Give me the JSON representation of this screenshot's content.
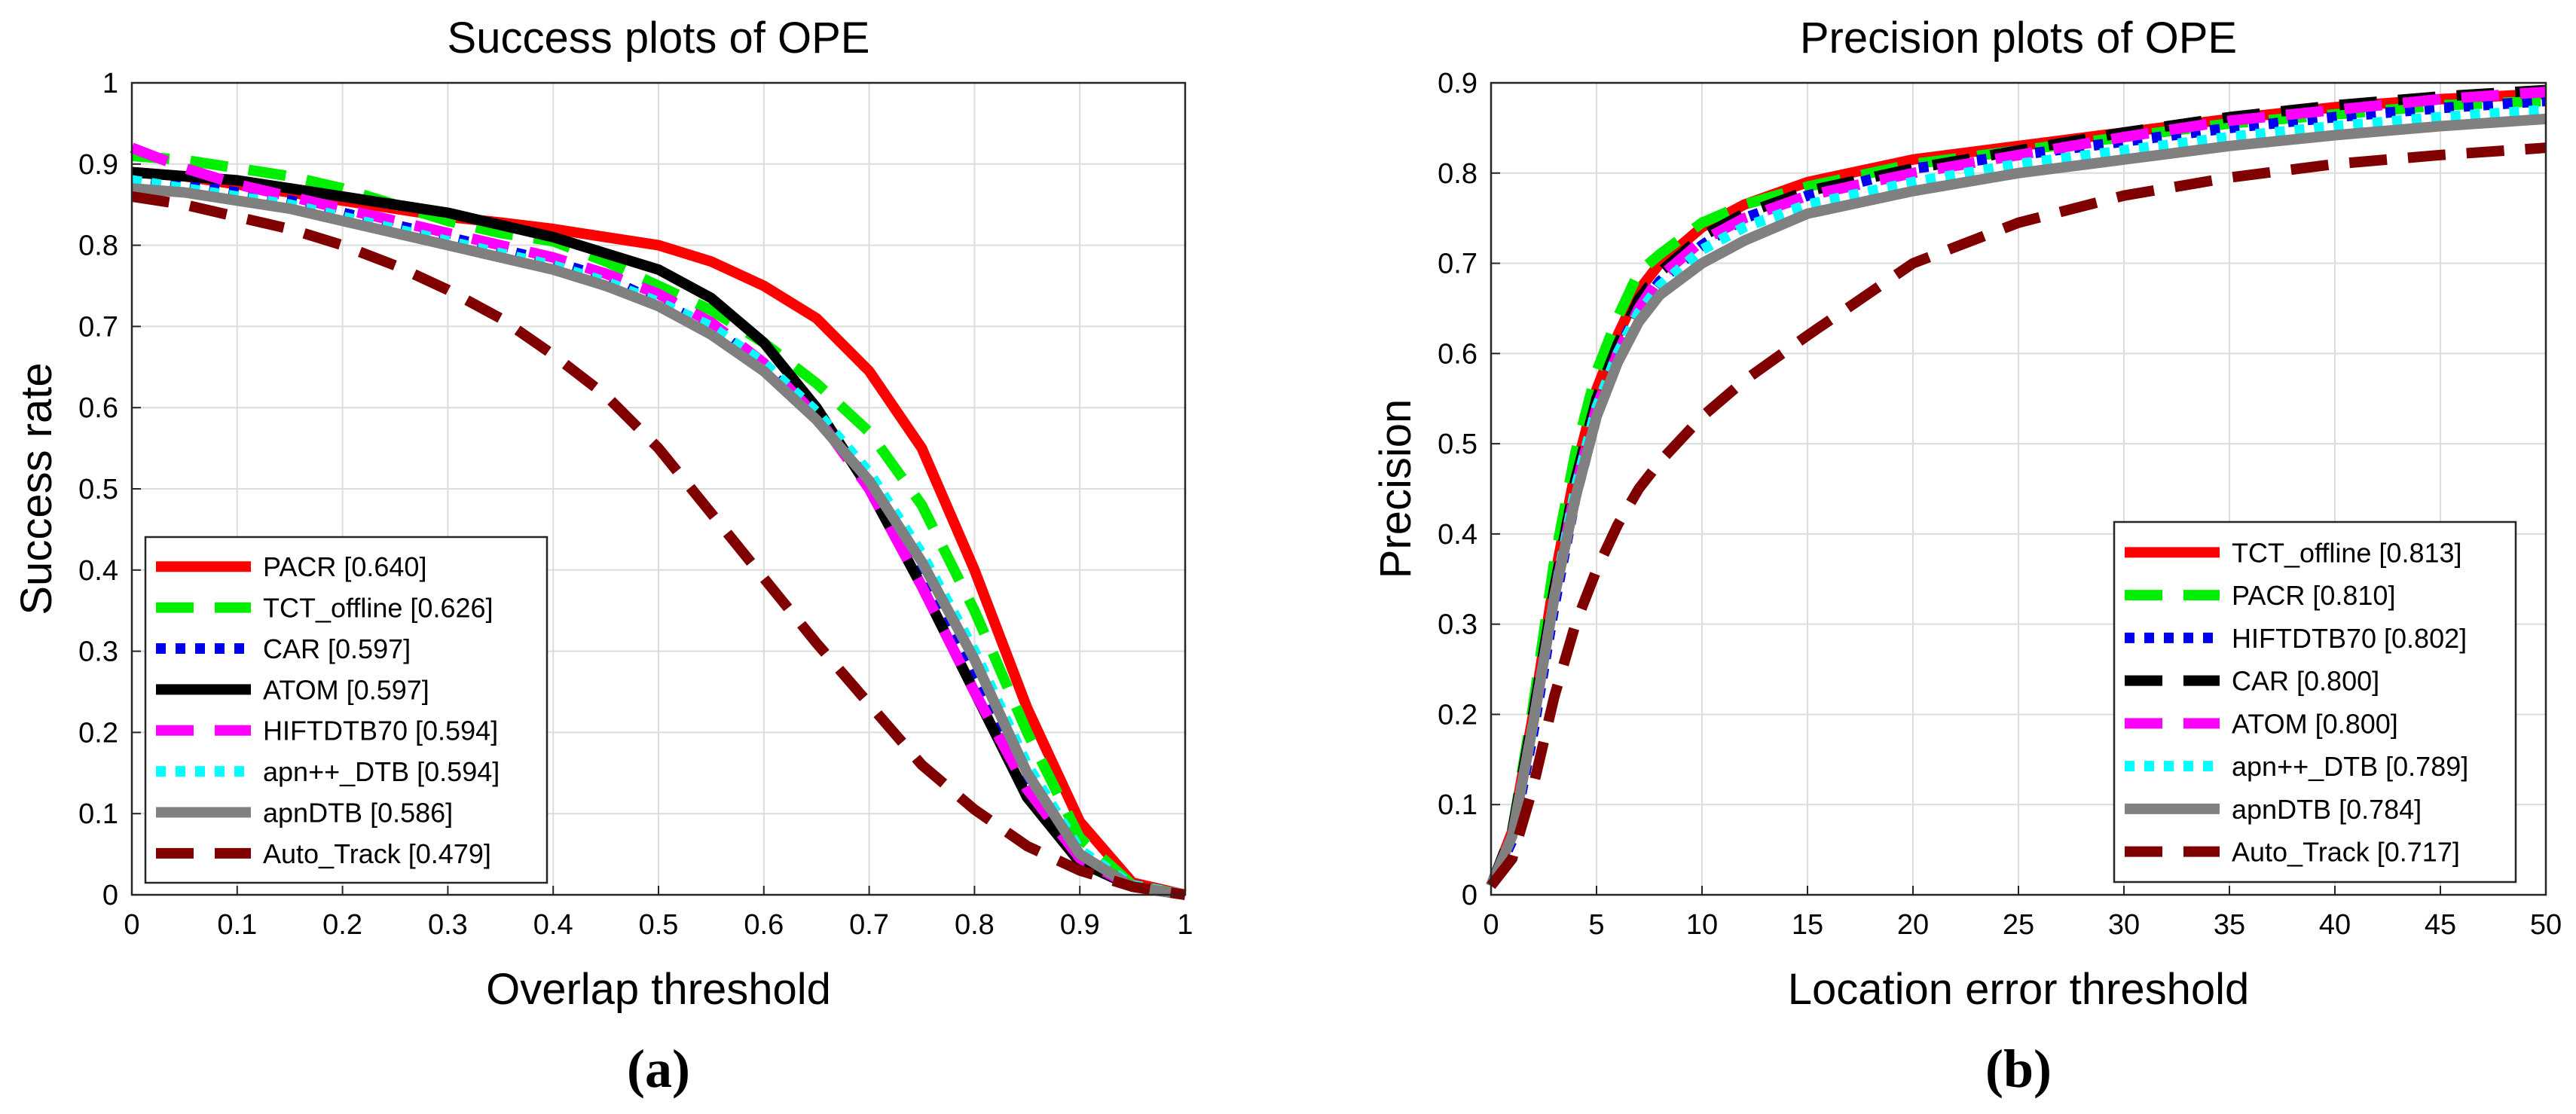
{
  "chart_data": [
    {
      "type": "line",
      "panel_label": "(a)",
      "title": "Success plots of OPE",
      "xlabel": "Overlap threshold",
      "ylabel": "Success rate",
      "xlim": [
        0,
        1
      ],
      "ylim": [
        0,
        1
      ],
      "grid": true,
      "legend_position": "bottom-left",
      "x": [
        0,
        0.05,
        0.1,
        0.15,
        0.2,
        0.25,
        0.3,
        0.35,
        0.4,
        0.45,
        0.5,
        0.55,
        0.6,
        0.65,
        0.7,
        0.75,
        0.8,
        0.85,
        0.9,
        0.95,
        1.0
      ],
      "xticks": [
        "0",
        "0.1",
        "0.2",
        "0.3",
        "0.4",
        "0.5",
        "0.6",
        "0.7",
        "0.8",
        "0.9",
        "1"
      ],
      "yticks": [
        "0",
        "0.1",
        "0.2",
        "0.3",
        "0.4",
        "0.5",
        "0.6",
        "0.7",
        "0.8",
        "0.9",
        "1"
      ],
      "series": [
        {
          "name": "PACR",
          "score": "[0.640]",
          "color": "#ff0000",
          "style": "solid",
          "values": [
            0.89,
            0.885,
            0.875,
            0.865,
            0.855,
            0.845,
            0.835,
            0.828,
            0.82,
            0.81,
            0.8,
            0.78,
            0.75,
            0.71,
            0.645,
            0.55,
            0.4,
            0.23,
            0.09,
            0.015,
            0.0
          ]
        },
        {
          "name": "TCT_offline",
          "score": "[0.626]",
          "color": "#00ee00",
          "style": "dash",
          "values": [
            0.91,
            0.905,
            0.895,
            0.885,
            0.87,
            0.85,
            0.83,
            0.815,
            0.805,
            0.78,
            0.75,
            0.72,
            0.68,
            0.63,
            0.57,
            0.48,
            0.35,
            0.2,
            0.07,
            0.012,
            0.0
          ]
        },
        {
          "name": "CAR",
          "score": "[0.597]",
          "color": "#0000ee",
          "style": "dot",
          "values": [
            0.885,
            0.875,
            0.865,
            0.855,
            0.84,
            0.825,
            0.81,
            0.795,
            0.78,
            0.76,
            0.73,
            0.7,
            0.65,
            0.59,
            0.51,
            0.4,
            0.27,
            0.14,
            0.05,
            0.01,
            0.0
          ]
        },
        {
          "name": "ATOM",
          "score": "[0.597]",
          "color": "#000000",
          "style": "solid",
          "values": [
            0.89,
            0.885,
            0.88,
            0.87,
            0.86,
            0.85,
            0.84,
            0.825,
            0.81,
            0.79,
            0.77,
            0.735,
            0.68,
            0.6,
            0.5,
            0.38,
            0.25,
            0.12,
            0.04,
            0.01,
            0.0
          ]
        },
        {
          "name": "HIFTDTB70",
          "score": "[0.594]",
          "color": "#ff00ff",
          "style": "dash",
          "values": [
            0.92,
            0.895,
            0.875,
            0.86,
            0.845,
            0.83,
            0.815,
            0.8,
            0.785,
            0.765,
            0.74,
            0.705,
            0.655,
            0.59,
            0.5,
            0.38,
            0.25,
            0.13,
            0.045,
            0.01,
            0.0
          ]
        },
        {
          "name": "apn++_DTB",
          "score": "[0.594]",
          "color": "#00ffff",
          "style": "dot",
          "values": [
            0.88,
            0.87,
            0.86,
            0.85,
            0.835,
            0.82,
            0.805,
            0.79,
            0.775,
            0.755,
            0.73,
            0.7,
            0.655,
            0.595,
            0.52,
            0.42,
            0.3,
            0.16,
            0.055,
            0.012,
            0.0
          ]
        },
        {
          "name": "apnDTB",
          "score": "[0.586]",
          "color": "#808080",
          "style": "solid",
          "values": [
            0.87,
            0.865,
            0.855,
            0.845,
            0.83,
            0.815,
            0.8,
            0.785,
            0.77,
            0.75,
            0.725,
            0.69,
            0.645,
            0.585,
            0.51,
            0.41,
            0.29,
            0.15,
            0.05,
            0.01,
            0.0
          ]
        },
        {
          "name": "Auto_Track",
          "score": "[0.479]",
          "color": "#800000",
          "style": "dash",
          "values": [
            0.86,
            0.85,
            0.835,
            0.82,
            0.8,
            0.775,
            0.745,
            0.71,
            0.665,
            0.615,
            0.55,
            0.47,
            0.39,
            0.31,
            0.235,
            0.16,
            0.105,
            0.06,
            0.03,
            0.01,
            0.0
          ]
        }
      ]
    },
    {
      "type": "line",
      "panel_label": "(b)",
      "title": "Precision plots of OPE",
      "xlabel": "Location error threshold",
      "ylabel": "Precision",
      "xlim": [
        0,
        50
      ],
      "ylim": [
        0,
        0.9
      ],
      "grid": true,
      "legend_position": "bottom-right",
      "x": [
        0,
        1,
        2,
        3,
        4,
        5,
        6,
        7,
        8,
        10,
        12,
        15,
        20,
        25,
        30,
        35,
        40,
        45,
        50
      ],
      "xticks": [
        "0",
        "5",
        "10",
        "15",
        "20",
        "25",
        "30",
        "35",
        "40",
        "45",
        "50"
      ],
      "yticks": [
        "0",
        "0.1",
        "0.2",
        "0.3",
        "0.4",
        "0.5",
        "0.6",
        "0.7",
        "0.8",
        "0.9"
      ],
      "series": [
        {
          "name": "TCT_offline",
          "score": "[0.813]",
          "color": "#ff0000",
          "style": "solid",
          "values": [
            0.01,
            0.07,
            0.2,
            0.35,
            0.47,
            0.56,
            0.62,
            0.67,
            0.7,
            0.74,
            0.765,
            0.79,
            0.815,
            0.83,
            0.845,
            0.86,
            0.873,
            0.882,
            0.888
          ]
        },
        {
          "name": "PACR",
          "score": "[0.810]",
          "color": "#00ee00",
          "style": "dash",
          "values": [
            0.01,
            0.07,
            0.21,
            0.37,
            0.49,
            0.58,
            0.64,
            0.69,
            0.71,
            0.745,
            0.765,
            0.785,
            0.81,
            0.825,
            0.84,
            0.855,
            0.865,
            0.875,
            0.88
          ]
        },
        {
          "name": "HIFTDTB70",
          "score": "[0.802]",
          "color": "#0000ee",
          "style": "dot",
          "values": [
            0.01,
            0.06,
            0.18,
            0.32,
            0.44,
            0.53,
            0.6,
            0.65,
            0.68,
            0.72,
            0.75,
            0.775,
            0.805,
            0.82,
            0.835,
            0.85,
            0.862,
            0.872,
            0.88
          ]
        },
        {
          "name": "CAR",
          "score": "[0.800]",
          "color": "#000000",
          "style": "dash",
          "values": [
            0.01,
            0.07,
            0.2,
            0.34,
            0.46,
            0.55,
            0.61,
            0.66,
            0.69,
            0.73,
            0.755,
            0.78,
            0.805,
            0.825,
            0.845,
            0.862,
            0.875,
            0.885,
            0.892
          ]
        },
        {
          "name": "ATOM",
          "score": "[0.800]",
          "color": "#ff00ff",
          "style": "dash",
          "values": [
            0.01,
            0.065,
            0.19,
            0.33,
            0.45,
            0.54,
            0.6,
            0.65,
            0.685,
            0.725,
            0.75,
            0.775,
            0.8,
            0.82,
            0.84,
            0.858,
            0.87,
            0.882,
            0.89
          ]
        },
        {
          "name": "apn++_DTB",
          "score": "[0.789]",
          "color": "#00ffff",
          "style": "dot",
          "values": [
            0.01,
            0.065,
            0.19,
            0.33,
            0.45,
            0.54,
            0.6,
            0.645,
            0.675,
            0.715,
            0.74,
            0.765,
            0.79,
            0.81,
            0.825,
            0.84,
            0.852,
            0.862,
            0.87
          ]
        },
        {
          "name": "apnDTB",
          "score": "[0.784]",
          "color": "#808080",
          "style": "solid",
          "values": [
            0.01,
            0.065,
            0.19,
            0.33,
            0.44,
            0.53,
            0.59,
            0.635,
            0.665,
            0.7,
            0.725,
            0.755,
            0.78,
            0.8,
            0.815,
            0.83,
            0.842,
            0.852,
            0.86
          ]
        },
        {
          "name": "Auto_Track",
          "score": "[0.717]",
          "color": "#800000",
          "style": "dash",
          "values": [
            0.01,
            0.04,
            0.12,
            0.22,
            0.3,
            0.36,
            0.41,
            0.45,
            0.48,
            0.53,
            0.57,
            0.62,
            0.7,
            0.745,
            0.775,
            0.795,
            0.81,
            0.82,
            0.828
          ]
        }
      ]
    }
  ]
}
